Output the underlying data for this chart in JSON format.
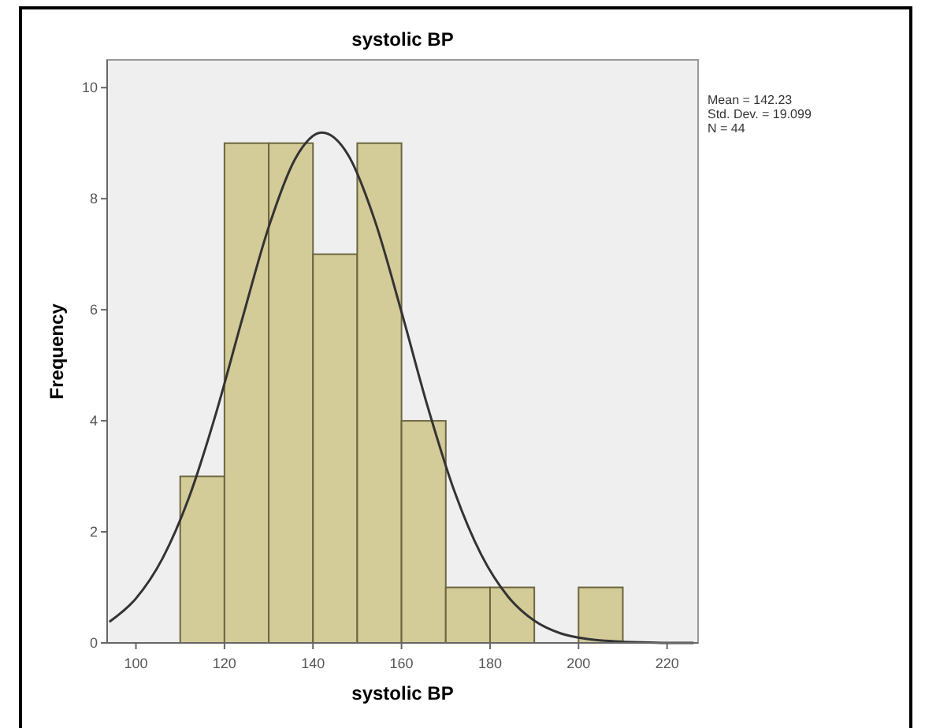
{
  "chart_data": {
    "type": "histogram",
    "title": "systolic  BP",
    "xlabel": "systolic  BP",
    "ylabel": "Frequency",
    "bins": [
      110,
      120,
      130,
      140,
      150,
      160,
      170,
      180,
      190,
      200,
      210
    ],
    "values": [
      3,
      9,
      9,
      7,
      9,
      4,
      1,
      1,
      0,
      1
    ],
    "color": "#d3cb98",
    "series": [
      {
        "type": "line",
        "color": "#333333",
        "x": [
          94,
          100,
          106,
          112,
          118,
          124,
          130,
          136,
          142,
          148,
          154,
          160,
          166,
          172,
          178,
          184,
          190,
          196,
          202,
          208,
          214,
          220,
          226
        ],
        "values": [
          0.38,
          0.8,
          1.52,
          2.62,
          4.11,
          5.83,
          7.49,
          8.72,
          9.19,
          8.78,
          7.6,
          5.96,
          4.23,
          2.72,
          1.59,
          0.84,
          0.4,
          0.17,
          0.07,
          0.03,
          0.01,
          0,
          0
        ]
      }
    ],
    "xlim": [
      93.5,
      227
    ],
    "ylim": [
      0,
      10.5
    ],
    "xticks": [
      100,
      120,
      140,
      160,
      180,
      200,
      220
    ],
    "yticks": [
      0,
      2,
      4,
      6,
      8,
      10
    ],
    "grid": false,
    "annotations": [
      "Mean = 142.23",
      "Std. Dev. = 19.099",
      "N = 44"
    ]
  }
}
